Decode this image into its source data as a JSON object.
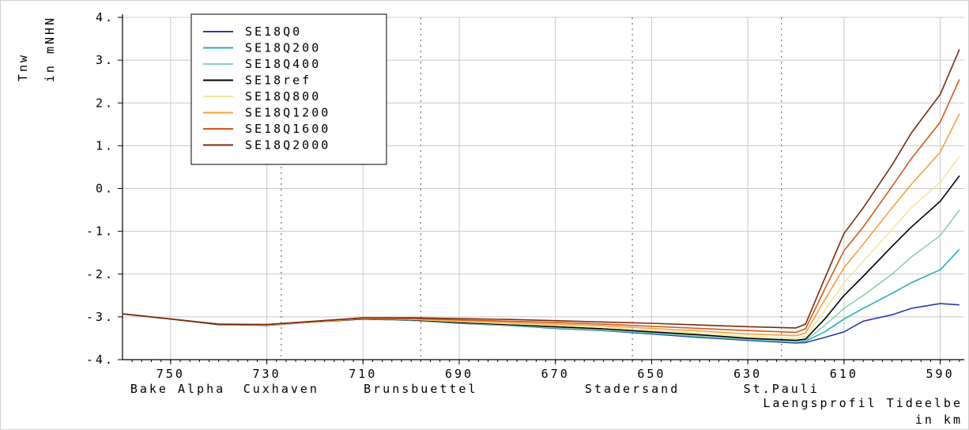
{
  "chart_data": {
    "type": "line",
    "ylabel_line1": "Tnw",
    "ylabel_line2": "in mNHN",
    "xlabel_line1": "Laengsprofil Tideelbe",
    "xlabel_line2": "in km",
    "xlim": [
      760,
      585
    ],
    "ylim": [
      -4,
      4
    ],
    "grid": true,
    "legend_position": "top-left",
    "x_ticks": [
      750,
      730,
      710,
      690,
      670,
      650,
      630,
      610,
      590
    ],
    "y_ticks": [
      {
        "value": 4,
        "label": "4."
      },
      {
        "value": 3,
        "label": "3."
      },
      {
        "value": 2,
        "label": "2."
      },
      {
        "value": 1,
        "label": "1."
      },
      {
        "value": 0,
        "label": "0."
      },
      {
        "value": -1,
        "label": "-1."
      },
      {
        "value": -2,
        "label": "-2."
      },
      {
        "value": -3,
        "label": "-3."
      },
      {
        "value": -4,
        "label": "-4."
      }
    ],
    "locations": [
      {
        "name": "Bake Alpha",
        "km": 748.5
      },
      {
        "name": "Cuxhaven",
        "km": 727
      },
      {
        "name": "Brunsbuettel",
        "km": 698
      },
      {
        "name": "Stadersand",
        "km": 654
      },
      {
        "name": "St.Pauli",
        "km": 623
      }
    ],
    "series": [
      {
        "name": "SE18Q0",
        "color": "#2d3da8",
        "points": [
          [
            760,
            -2.93
          ],
          [
            750,
            -3.05
          ],
          [
            740,
            -3.18
          ],
          [
            730,
            -3.2
          ],
          [
            720,
            -3.12
          ],
          [
            710,
            -3.05
          ],
          [
            700,
            -3.08
          ],
          [
            690,
            -3.15
          ],
          [
            680,
            -3.2
          ],
          [
            670,
            -3.27
          ],
          [
            660,
            -3.32
          ],
          [
            650,
            -3.4
          ],
          [
            640,
            -3.48
          ],
          [
            630,
            -3.55
          ],
          [
            620,
            -3.61
          ],
          [
            618,
            -3.6
          ],
          [
            614,
            -3.48
          ],
          [
            610,
            -3.35
          ],
          [
            606,
            -3.1
          ],
          [
            600,
            -2.95
          ],
          [
            596,
            -2.8
          ],
          [
            590,
            -2.69
          ],
          [
            586,
            -2.72
          ]
        ]
      },
      {
        "name": "SE18Q200",
        "color": "#2ab0b0",
        "points": [
          [
            760,
            -2.93
          ],
          [
            750,
            -3.05
          ],
          [
            740,
            -3.18
          ],
          [
            730,
            -3.19
          ],
          [
            720,
            -3.12
          ],
          [
            710,
            -3.05
          ],
          [
            700,
            -3.08
          ],
          [
            690,
            -3.14
          ],
          [
            680,
            -3.2
          ],
          [
            670,
            -3.26
          ],
          [
            660,
            -3.31
          ],
          [
            650,
            -3.38
          ],
          [
            640,
            -3.46
          ],
          [
            630,
            -3.53
          ],
          [
            620,
            -3.59
          ],
          [
            618,
            -3.57
          ],
          [
            614,
            -3.35
          ],
          [
            610,
            -3.05
          ],
          [
            606,
            -2.8
          ],
          [
            600,
            -2.45
          ],
          [
            596,
            -2.2
          ],
          [
            590,
            -1.9
          ],
          [
            586,
            -1.42
          ]
        ]
      },
      {
        "name": "SE18Q400",
        "color": "#8fd0b0",
        "points": [
          [
            760,
            -2.93
          ],
          [
            750,
            -3.05
          ],
          [
            740,
            -3.18
          ],
          [
            730,
            -3.19
          ],
          [
            720,
            -3.12
          ],
          [
            710,
            -3.05
          ],
          [
            700,
            -3.08
          ],
          [
            690,
            -3.14
          ],
          [
            680,
            -3.19
          ],
          [
            670,
            -3.25
          ],
          [
            660,
            -3.3
          ],
          [
            650,
            -3.37
          ],
          [
            640,
            -3.45
          ],
          [
            630,
            -3.52
          ],
          [
            620,
            -3.58
          ],
          [
            618,
            -3.55
          ],
          [
            614,
            -3.2
          ],
          [
            610,
            -2.8
          ],
          [
            606,
            -2.5
          ],
          [
            600,
            -2.0
          ],
          [
            596,
            -1.6
          ],
          [
            590,
            -1.1
          ],
          [
            586,
            -0.5
          ]
        ]
      },
      {
        "name": "SE18ref",
        "color": "#000000",
        "points": [
          [
            760,
            -2.93
          ],
          [
            750,
            -3.05
          ],
          [
            740,
            -3.18
          ],
          [
            730,
            -3.19
          ],
          [
            720,
            -3.12
          ],
          [
            710,
            -3.05
          ],
          [
            700,
            -3.07
          ],
          [
            690,
            -3.13
          ],
          [
            680,
            -3.18
          ],
          [
            670,
            -3.23
          ],
          [
            660,
            -3.28
          ],
          [
            650,
            -3.35
          ],
          [
            640,
            -3.42
          ],
          [
            630,
            -3.5
          ],
          [
            620,
            -3.55
          ],
          [
            618,
            -3.52
          ],
          [
            614,
            -3.05
          ],
          [
            610,
            -2.5
          ],
          [
            606,
            -2.05
          ],
          [
            600,
            -1.35
          ],
          [
            596,
            -0.9
          ],
          [
            590,
            -0.3
          ],
          [
            586,
            0.3
          ]
        ]
      },
      {
        "name": "SE18Q800",
        "color": "#f5e6a0",
        "points": [
          [
            760,
            -2.93
          ],
          [
            750,
            -3.05
          ],
          [
            740,
            -3.17
          ],
          [
            730,
            -3.19
          ],
          [
            720,
            -3.12
          ],
          [
            710,
            -3.04
          ],
          [
            700,
            -3.06
          ],
          [
            690,
            -3.11
          ],
          [
            680,
            -3.16
          ],
          [
            670,
            -3.2
          ],
          [
            660,
            -3.25
          ],
          [
            650,
            -3.31
          ],
          [
            640,
            -3.38
          ],
          [
            630,
            -3.45
          ],
          [
            620,
            -3.5
          ],
          [
            618,
            -3.46
          ],
          [
            614,
            -2.85
          ],
          [
            610,
            -2.2
          ],
          [
            606,
            -1.7
          ],
          [
            600,
            -0.95
          ],
          [
            596,
            -0.45
          ],
          [
            590,
            0.15
          ],
          [
            586,
            0.75
          ]
        ]
      },
      {
        "name": "SE18Q1200",
        "color": "#f5a040",
        "points": [
          [
            760,
            -2.93
          ],
          [
            750,
            -3.05
          ],
          [
            740,
            -3.17
          ],
          [
            730,
            -3.19
          ],
          [
            720,
            -3.11
          ],
          [
            710,
            -3.04
          ],
          [
            700,
            -3.05
          ],
          [
            690,
            -3.09
          ],
          [
            680,
            -3.13
          ],
          [
            670,
            -3.17
          ],
          [
            660,
            -3.21
          ],
          [
            650,
            -3.27
          ],
          [
            640,
            -3.33
          ],
          [
            630,
            -3.4
          ],
          [
            620,
            -3.44
          ],
          [
            618,
            -3.38
          ],
          [
            614,
            -2.6
          ],
          [
            610,
            -1.85
          ],
          [
            606,
            -1.3
          ],
          [
            600,
            -0.45
          ],
          [
            596,
            0.1
          ],
          [
            590,
            0.85
          ],
          [
            586,
            1.75
          ]
        ]
      },
      {
        "name": "SE18Q1600",
        "color": "#d05a1e",
        "points": [
          [
            760,
            -2.93
          ],
          [
            750,
            -3.05
          ],
          [
            740,
            -3.17
          ],
          [
            730,
            -3.18
          ],
          [
            720,
            -3.11
          ],
          [
            710,
            -3.03
          ],
          [
            700,
            -3.04
          ],
          [
            690,
            -3.07
          ],
          [
            680,
            -3.1
          ],
          [
            670,
            -3.13
          ],
          [
            660,
            -3.17
          ],
          [
            650,
            -3.22
          ],
          [
            640,
            -3.27
          ],
          [
            630,
            -3.32
          ],
          [
            620,
            -3.36
          ],
          [
            618,
            -3.28
          ],
          [
            614,
            -2.35
          ],
          [
            610,
            -1.45
          ],
          [
            606,
            -0.9
          ],
          [
            600,
            0.05
          ],
          [
            596,
            0.7
          ],
          [
            590,
            1.55
          ],
          [
            586,
            2.55
          ]
        ]
      },
      {
        "name": "SE18Q2000",
        "color": "#7a2a10",
        "points": [
          [
            760,
            -2.93
          ],
          [
            750,
            -3.05
          ],
          [
            740,
            -3.17
          ],
          [
            730,
            -3.18
          ],
          [
            720,
            -3.1
          ],
          [
            710,
            -3.02
          ],
          [
            700,
            -3.02
          ],
          [
            690,
            -3.04
          ],
          [
            680,
            -3.06
          ],
          [
            670,
            -3.09
          ],
          [
            660,
            -3.12
          ],
          [
            650,
            -3.15
          ],
          [
            640,
            -3.19
          ],
          [
            630,
            -3.23
          ],
          [
            620,
            -3.26
          ],
          [
            618,
            -3.17
          ],
          [
            614,
            -2.1
          ],
          [
            610,
            -1.05
          ],
          [
            606,
            -0.45
          ],
          [
            600,
            0.55
          ],
          [
            596,
            1.3
          ],
          [
            590,
            2.2
          ],
          [
            586,
            3.25
          ]
        ]
      }
    ]
  }
}
